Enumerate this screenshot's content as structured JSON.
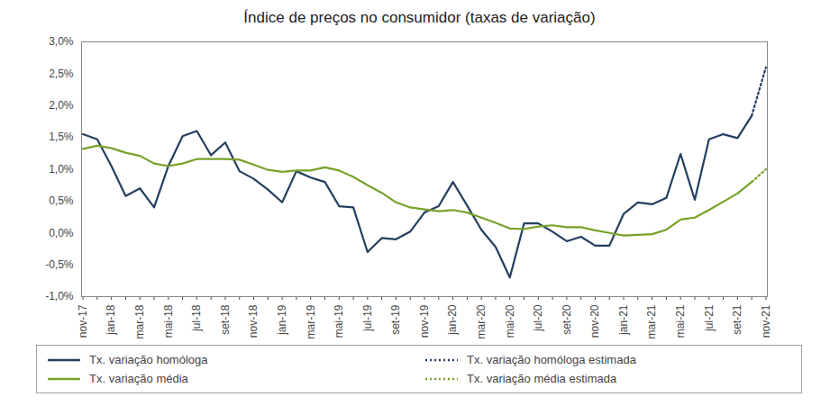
{
  "chart_data": {
    "type": "line",
    "title": "Índice de preços no consumidor (taxas de variação)",
    "categories": [
      "nov-17",
      null,
      "jan-18",
      null,
      "mar-18",
      null,
      "mai-18",
      null,
      "jul-18",
      null,
      "set-18",
      null,
      "nov-18",
      null,
      "jan-19",
      null,
      "mar-19",
      null,
      "mai-19",
      null,
      "jul-19",
      null,
      "set-19",
      null,
      "nov-19",
      null,
      "jan-20",
      null,
      "mar-20",
      null,
      "mai-20",
      null,
      "jul-20",
      null,
      "set-20",
      null,
      "nov-20",
      null,
      "jan-21",
      null,
      "mar-21",
      null,
      "mai-21",
      null,
      "jul-21",
      null,
      "set-21",
      null,
      "nov-21"
    ],
    "series": [
      {
        "name": "Tx. variação homóloga",
        "color": "#243f60",
        "line_style": "solid",
        "values": [
          1.55,
          1.47,
          1.05,
          0.58,
          0.7,
          0.4,
          1.05,
          1.52,
          1.6,
          1.22,
          1.42,
          0.97,
          0.85,
          0.68,
          0.48,
          0.97,
          0.87,
          0.8,
          0.42,
          0.4,
          -0.3,
          -0.08,
          -0.1,
          0.02,
          0.32,
          0.42,
          0.8,
          0.43,
          0.05,
          -0.22,
          -0.7,
          0.15,
          0.15,
          0.02,
          -0.13,
          -0.06,
          -0.2,
          -0.2,
          0.3,
          0.48,
          0.45,
          0.55,
          1.24,
          0.52,
          1.47,
          1.55,
          1.49,
          1.84,
          null
        ]
      },
      {
        "name": "Tx. variação homóloga estimada",
        "color": "#243f60",
        "line_style": "dotted",
        "values": [
          null,
          null,
          null,
          null,
          null,
          null,
          null,
          null,
          null,
          null,
          null,
          null,
          null,
          null,
          null,
          null,
          null,
          null,
          null,
          null,
          null,
          null,
          null,
          null,
          null,
          null,
          null,
          null,
          null,
          null,
          null,
          null,
          null,
          null,
          null,
          null,
          null,
          null,
          null,
          null,
          null,
          null,
          null,
          null,
          null,
          null,
          null,
          1.84,
          2.6
        ]
      },
      {
        "name": "Tx. variação média",
        "color": "#77a22a",
        "line_style": "solid",
        "values": [
          1.32,
          1.37,
          1.33,
          1.26,
          1.21,
          1.09,
          1.05,
          1.09,
          1.16,
          1.16,
          1.16,
          1.15,
          1.07,
          0.99,
          0.96,
          0.98,
          0.98,
          1.03,
          0.98,
          0.88,
          0.75,
          0.63,
          0.48,
          0.4,
          0.37,
          0.34,
          0.36,
          0.32,
          0.24,
          0.16,
          0.07,
          0.06,
          0.1,
          0.12,
          0.09,
          0.09,
          0.04,
          0.0,
          -0.04,
          -0.03,
          -0.02,
          0.05,
          0.21,
          0.24,
          0.36,
          0.49,
          0.62,
          0.8,
          null
        ]
      },
      {
        "name": "Tx. variação média  estimada",
        "color": "#77a22a",
        "line_style": "dotted",
        "values": [
          null,
          null,
          null,
          null,
          null,
          null,
          null,
          null,
          null,
          null,
          null,
          null,
          null,
          null,
          null,
          null,
          null,
          null,
          null,
          null,
          null,
          null,
          null,
          null,
          null,
          null,
          null,
          null,
          null,
          null,
          null,
          null,
          null,
          null,
          null,
          null,
          null,
          null,
          null,
          null,
          null,
          null,
          null,
          null,
          null,
          null,
          null,
          0.8,
          1.0
        ]
      }
    ],
    "ylim": [
      -1.0,
      3.0
    ],
    "yticks": [
      {
        "value": -1.0,
        "label": "-1,0%"
      },
      {
        "value": -0.5,
        "label": "-0,5%"
      },
      {
        "value": 0.0,
        "label": "0,0%"
      },
      {
        "value": 0.5,
        "label": "0,5%"
      },
      {
        "value": 1.0,
        "label": "1,0%"
      },
      {
        "value": 1.5,
        "label": "1,5%"
      },
      {
        "value": 2.0,
        "label": "2,0%"
      },
      {
        "value": 2.5,
        "label": "2,5%"
      },
      {
        "value": 3.0,
        "label": "3,0%"
      }
    ],
    "grid": false,
    "legend": "bottom"
  }
}
